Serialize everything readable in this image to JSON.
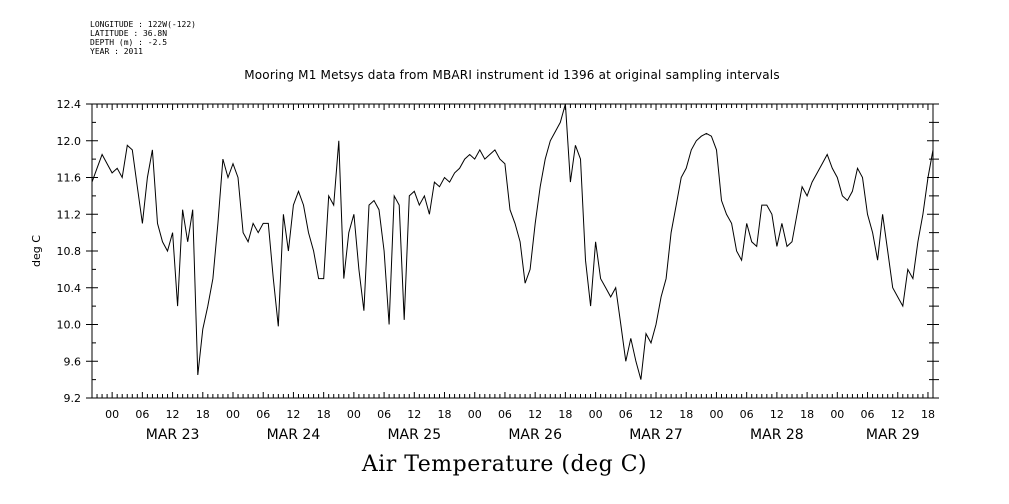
{
  "meta": {
    "lines": [
      "LONGITUDE : 122W(-122)",
      "LATITUDE : 36.8N",
      "DEPTH (m) : -2.5",
      "YEAR : 2011"
    ]
  },
  "chart_data": {
    "type": "line",
    "title": "Mooring M1 Metsys data from MBARI instrument id 1396 at original sampling intervals",
    "xlabel": "Air Temperature (deg C)",
    "ylabel": "deg C",
    "ylim": [
      9.2,
      12.4
    ],
    "yticks": [
      9.2,
      9.6,
      10.0,
      10.4,
      10.8,
      11.2,
      11.6,
      12.0,
      12.4
    ],
    "ytick_labels": [
      "9.2",
      "9.6",
      "10.0",
      "10.4",
      "10.8",
      "11.2",
      "11.6",
      "12.0",
      "12.4"
    ],
    "x_unit": "hours since 2011-03-22T20:00",
    "xlim": [
      0,
      167
    ],
    "x_tick_labels": [
      "00",
      "06",
      "12",
      "18",
      "00",
      "06",
      "12",
      "18",
      "00",
      "06",
      "12",
      "18",
      "00",
      "06",
      "12",
      "18",
      "00",
      "06",
      "12",
      "18",
      "00",
      "06",
      "12",
      "18",
      "00",
      "06",
      "12",
      "18"
    ],
    "x_tick_hours": [
      4,
      10,
      16,
      22,
      28,
      34,
      40,
      46,
      52,
      58,
      64,
      70,
      76,
      82,
      88,
      94,
      100,
      106,
      112,
      118,
      124,
      130,
      136,
      142,
      148,
      154,
      160,
      166
    ],
    "date_labels": [
      "MAR 23",
      "MAR 24",
      "MAR 25",
      "MAR 26",
      "MAR 27",
      "MAR 28",
      "MAR 29"
    ],
    "date_label_hours": [
      16,
      40,
      64,
      88,
      112,
      136,
      159
    ],
    "grid": false,
    "series": [
      {
        "color": "#000000",
        "x": [
          0,
          1,
          2,
          3,
          4,
          5,
          6,
          7,
          8,
          9,
          10,
          11,
          12,
          13,
          14,
          15,
          16,
          17,
          18,
          19,
          20,
          21,
          22,
          23,
          24,
          25,
          26,
          27,
          28,
          29,
          30,
          31,
          32,
          33,
          34,
          35,
          36,
          37,
          38,
          39,
          40,
          41,
          42,
          43,
          44,
          45,
          46,
          47,
          48,
          49,
          50,
          51,
          52,
          53,
          54,
          55,
          56,
          57,
          58,
          59,
          60,
          61,
          62,
          63,
          64,
          65,
          66,
          67,
          68,
          69,
          70,
          71,
          72,
          73,
          74,
          75,
          76,
          77,
          78,
          79,
          80,
          81,
          82,
          83,
          84,
          85,
          86,
          87,
          88,
          89,
          90,
          91,
          92,
          93,
          94,
          95,
          96,
          97,
          98,
          99,
          100,
          101,
          102,
          103,
          104,
          105,
          106,
          107,
          108,
          109,
          110,
          111,
          112,
          113,
          114,
          115,
          116,
          117,
          118,
          119,
          120,
          121,
          122,
          123,
          124,
          125,
          126,
          127,
          128,
          129,
          130,
          131,
          132,
          133,
          134,
          135,
          136,
          137,
          138,
          139,
          140,
          141,
          142,
          143,
          144,
          145,
          146,
          147,
          148,
          149,
          150,
          151,
          152,
          153,
          154,
          155,
          156,
          157,
          158,
          159,
          160,
          161,
          162,
          163,
          164,
          165,
          166,
          167
        ],
        "y": [
          11.55,
          11.7,
          11.85,
          11.75,
          11.65,
          11.7,
          11.6,
          11.95,
          11.9,
          11.5,
          11.1,
          11.6,
          11.9,
          11.1,
          10.9,
          10.8,
          11.0,
          10.2,
          11.25,
          10.9,
          11.25,
          9.45,
          9.95,
          10.2,
          10.5,
          11.1,
          11.8,
          11.6,
          11.75,
          11.6,
          11.0,
          10.9,
          11.1,
          11.0,
          11.1,
          11.1,
          10.5,
          9.98,
          11.2,
          10.8,
          11.3,
          11.45,
          11.3,
          11.0,
          10.8,
          10.5,
          10.5,
          11.4,
          11.3,
          12.0,
          10.5,
          11.0,
          11.2,
          10.6,
          10.15,
          11.3,
          11.35,
          11.25,
          10.8,
          10.0,
          11.4,
          11.3,
          10.05,
          11.4,
          11.45,
          11.3,
          11.4,
          11.2,
          11.55,
          11.5,
          11.6,
          11.55,
          11.65,
          11.7,
          11.8,
          11.85,
          11.8,
          11.9,
          11.8,
          11.85,
          11.9,
          11.8,
          11.75,
          11.25,
          11.1,
          10.9,
          10.45,
          10.6,
          11.1,
          11.5,
          11.8,
          12.0,
          12.1,
          12.2,
          12.4,
          11.55,
          11.95,
          11.8,
          10.7,
          10.2,
          10.9,
          10.5,
          10.4,
          10.3,
          10.4,
          10.0,
          9.6,
          9.85,
          9.6,
          9.4,
          9.9,
          9.8,
          10.0,
          10.3,
          10.5,
          11.0,
          11.3,
          11.6,
          11.7,
          11.9,
          12.0,
          12.05,
          12.08,
          12.05,
          11.9,
          11.35,
          11.2,
          11.1,
          10.8,
          10.7,
          11.1,
          10.9,
          10.85,
          11.3,
          11.3,
          11.2,
          10.85,
          11.1,
          10.85,
          10.9,
          11.2,
          11.5,
          11.4,
          11.55,
          11.65,
          11.75,
          11.85,
          11.7,
          11.6,
          11.4,
          11.35,
          11.45,
          11.7,
          11.6,
          11.2,
          11.0,
          10.7,
          11.2,
          10.8,
          10.4,
          10.3,
          10.2,
          10.6,
          10.5,
          10.9,
          11.2,
          11.6,
          11.9
        ]
      }
    ]
  }
}
